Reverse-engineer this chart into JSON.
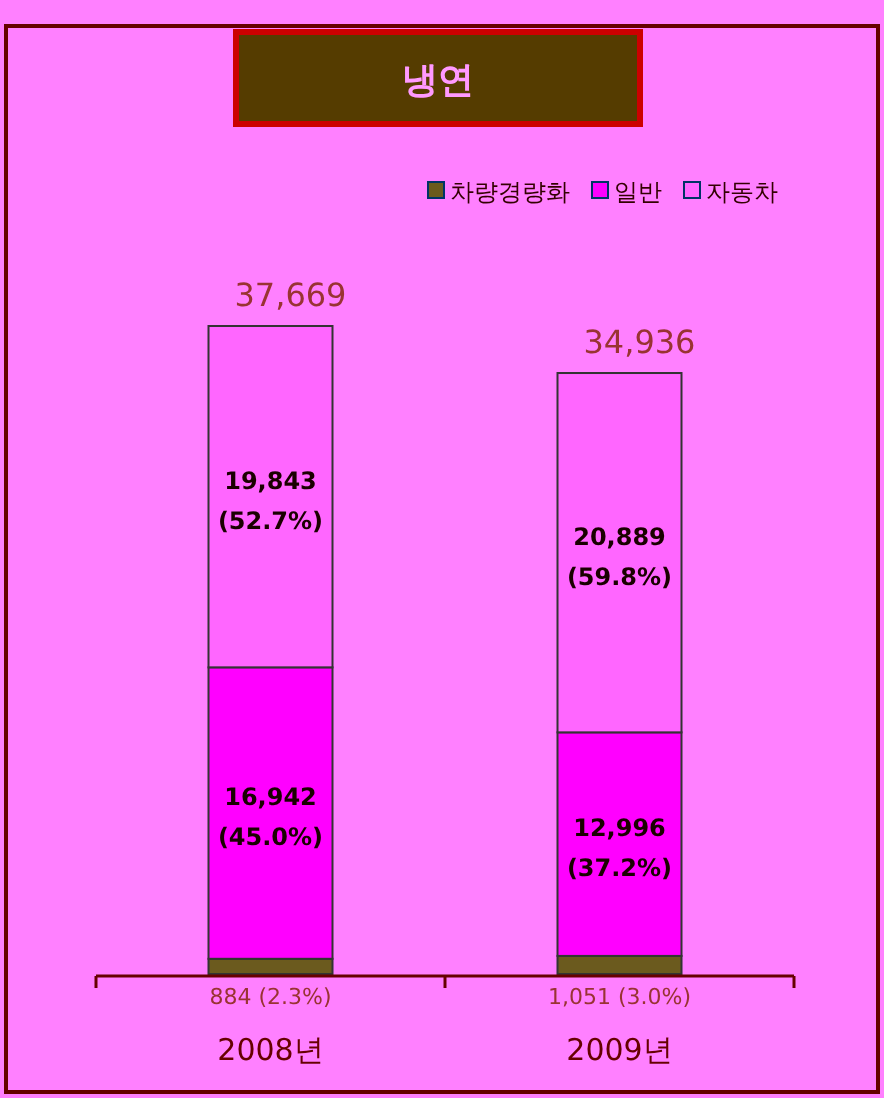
{
  "chart_data": {
    "type": "bar",
    "stacked": true,
    "title": "냉연",
    "categories": [
      "2008년",
      "2009년"
    ],
    "legend": "top right",
    "series": [
      {
        "name": "차량경량화",
        "color": "#6b5a1e",
        "values": [
          884,
          1051
        ],
        "value_labels": [
          "884 (2.3%)",
          "1,051 (3.0%)"
        ]
      },
      {
        "name": "일반",
        "color": "#ff00ff",
        "values": [
          16942,
          12996
        ],
        "value_labels": [
          "16,942 (45.0%)",
          "12,996 (37.2%)"
        ]
      },
      {
        "name": "자동차",
        "color": "#ff66ff",
        "values": [
          19843,
          20889
        ],
        "value_labels": [
          "19,843 (52.7%)",
          "20,889 (59.8%)"
        ]
      }
    ],
    "totals": [
      "37,669",
      "34,936"
    ]
  }
}
